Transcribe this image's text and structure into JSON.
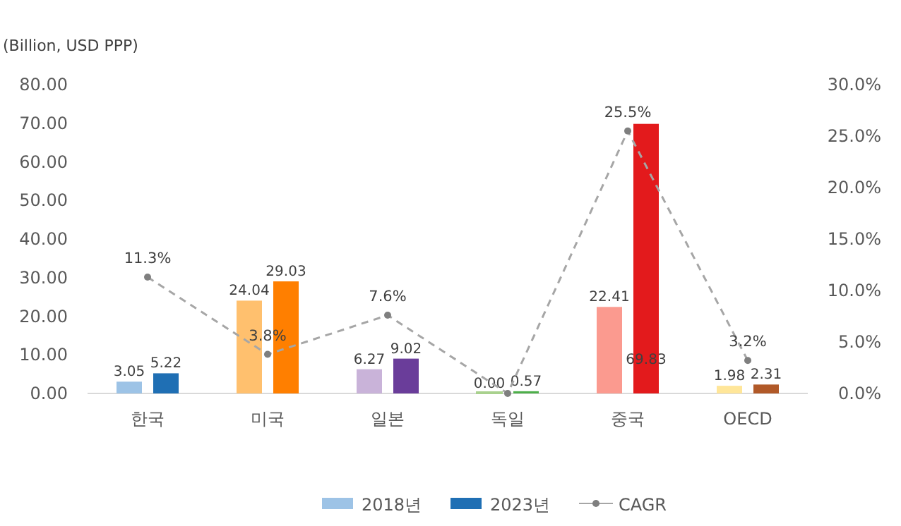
{
  "chart_data": {
    "type": "bar",
    "ylabel": "(Billion, USD PPP)",
    "categories": [
      "한국",
      "미국",
      "일본",
      "독일",
      "중국",
      "OECD"
    ],
    "series": [
      {
        "name": "2018년",
        "color": "#9dc3e6",
        "colors": [
          "#9dc3e6",
          "#ffc06e",
          "#c9b3d9",
          "#a9d18e",
          "#fb9a8f",
          "#ffe699"
        ],
        "values": [
          3.05,
          24.04,
          6.27,
          0.0,
          22.41,
          1.98
        ],
        "value_labels": [
          "3.05",
          "24.04",
          "6.27",
          "0.00",
          "22.41",
          "1.98"
        ]
      },
      {
        "name": "2023년",
        "color": "#1f6fb4",
        "colors": [
          "#1f6fb4",
          "#ff7f00",
          "#6a3d9a",
          "#4daf4a",
          "#e31a1c",
          "#b15928"
        ],
        "values": [
          5.22,
          29.03,
          9.02,
          0.57,
          69.83,
          2.31
        ],
        "value_labels": [
          "5.22",
          "29.03",
          "9.02",
          "0.57",
          "69.83",
          "2.31"
        ]
      },
      {
        "name": "CAGR",
        "type": "line",
        "axis": "y2",
        "color": "#a6a6a6",
        "line_style": "dashed",
        "marker": "circle",
        "values": [
          11.3,
          3.8,
          7.6,
          0,
          25.5,
          3.2
        ],
        "value_labels": [
          "11.3%",
          "3.8%",
          "7.6%",
          null,
          "25.5%",
          "3.2%"
        ]
      }
    ],
    "ylim": [
      0,
      80
    ],
    "yticks": [
      {
        "value": 0,
        "label": "0.00"
      },
      {
        "value": 10,
        "label": "10.00"
      },
      {
        "value": 20,
        "label": "20.00"
      },
      {
        "value": 30,
        "label": "30.00"
      },
      {
        "value": 40,
        "label": "40.00"
      },
      {
        "value": 50,
        "label": "50.00"
      },
      {
        "value": 60,
        "label": "60.00"
      },
      {
        "value": 70,
        "label": "70.00"
      },
      {
        "value": 80,
        "label": "80.00"
      }
    ],
    "y2lim": [
      0,
      30
    ],
    "y2ticks": [
      {
        "value": 0,
        "label": "0.0%"
      },
      {
        "value": 5,
        "label": "5.0%"
      },
      {
        "value": 10,
        "label": "10.0%"
      },
      {
        "value": 15,
        "label": "15.0%"
      },
      {
        "value": 20,
        "label": "20.0%"
      },
      {
        "value": 25,
        "label": "25.0%"
      },
      {
        "value": 30,
        "label": "30.0%"
      }
    ],
    "grid": false,
    "legend": "bottom"
  }
}
